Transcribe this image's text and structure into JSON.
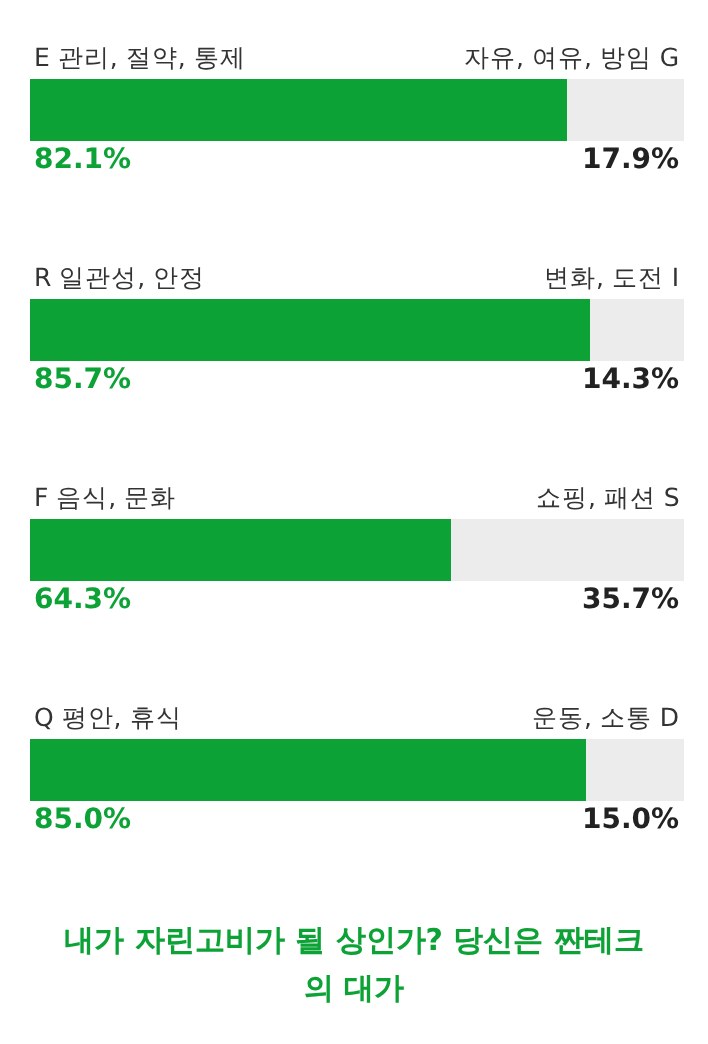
{
  "chart_data": {
    "type": "bar",
    "orientation": "horizontal",
    "stacked": true,
    "title": "내가 자린고비가 될 상인가? 당신은 짠테크의 대가",
    "categories": [
      "E 관리, 절약, 통제",
      "R 일관성, 안정",
      "F 음식, 문화",
      "Q 평안, 휴식"
    ],
    "series": [
      {
        "color": "#0ca236",
        "values": [
          82.1,
          85.7,
          64.3,
          85.0
        ],
        "value_labels": [
          "82.1%",
          "85.7%",
          "64.3%",
          "85.0%"
        ]
      },
      {
        "color": "#ececec",
        "values": [
          17.9,
          14.3,
          35.7,
          15.0
        ],
        "value_labels": [
          "17.9%",
          "14.3%",
          "35.7%",
          "15.0%"
        ]
      }
    ],
    "annotations": [
      "자유, 여유, 방임 G",
      "변화, 도전 I",
      "쇼핑, 패션 S",
      "운동, 소통 D"
    ]
  }
}
